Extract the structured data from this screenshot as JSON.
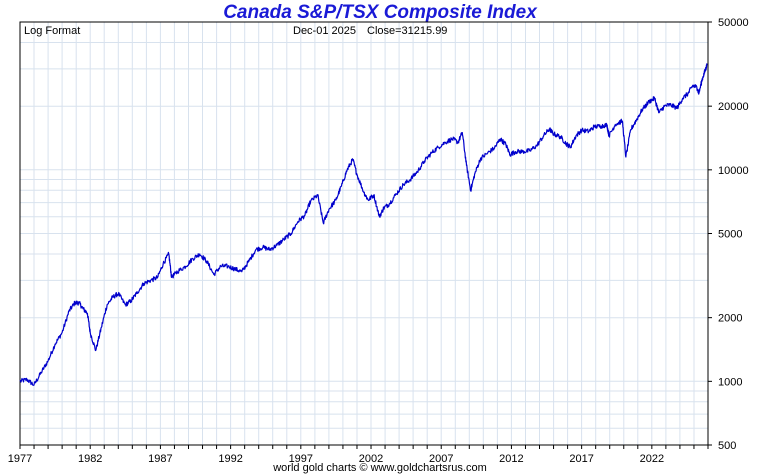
{
  "chart_data": {
    "type": "line",
    "title": "Canada S&P/TSX Composite Index",
    "scale_label": "Log Format",
    "last_date": "Dec-01  2025",
    "last_close_label": "Close=31215.99",
    "y_scale": "log",
    "ylim": [
      500,
      50000
    ],
    "xlim": [
      1977,
      2026
    ],
    "y_ticks": [
      500,
      1000,
      2000,
      5000,
      10000,
      20000,
      50000
    ],
    "x_ticks": [
      1977,
      1982,
      1987,
      1992,
      1997,
      2002,
      2007,
      2012,
      2017,
      2022
    ],
    "grid": true,
    "line_color": "#0000cc",
    "series": [
      {
        "name": "S&P/TSX Composite",
        "points": [
          [
            1977.0,
            1000
          ],
          [
            1977.5,
            1020
          ],
          [
            1978.0,
            960
          ],
          [
            1978.5,
            1100
          ],
          [
            1979.0,
            1250
          ],
          [
            1979.5,
            1500
          ],
          [
            1980.0,
            1700
          ],
          [
            1980.5,
            2150
          ],
          [
            1980.9,
            2350
          ],
          [
            1981.2,
            2350
          ],
          [
            1981.5,
            2200
          ],
          [
            1981.8,
            2100
          ],
          [
            1982.0,
            1700
          ],
          [
            1982.4,
            1400
          ],
          [
            1982.8,
            1800
          ],
          [
            1983.2,
            2300
          ],
          [
            1983.6,
            2500
          ],
          [
            1984.0,
            2600
          ],
          [
            1984.5,
            2300
          ],
          [
            1984.9,
            2400
          ],
          [
            1985.3,
            2600
          ],
          [
            1985.8,
            2900
          ],
          [
            1986.3,
            3000
          ],
          [
            1986.8,
            3100
          ],
          [
            1987.2,
            3600
          ],
          [
            1987.6,
            4000
          ],
          [
            1987.8,
            3100
          ],
          [
            1988.2,
            3300
          ],
          [
            1988.8,
            3500
          ],
          [
            1989.3,
            3800
          ],
          [
            1989.8,
            4000
          ],
          [
            1990.3,
            3700
          ],
          [
            1990.8,
            3200
          ],
          [
            1991.3,
            3500
          ],
          [
            1991.8,
            3500
          ],
          [
            1992.3,
            3400
          ],
          [
            1992.8,
            3300
          ],
          [
            1993.3,
            3700
          ],
          [
            1993.8,
            4200
          ],
          [
            1994.3,
            4300
          ],
          [
            1994.8,
            4200
          ],
          [
            1995.3,
            4400
          ],
          [
            1995.8,
            4700
          ],
          [
            1996.3,
            5000
          ],
          [
            1996.8,
            5700
          ],
          [
            1997.3,
            6100
          ],
          [
            1997.7,
            7100
          ],
          [
            1998.2,
            7600
          ],
          [
            1998.6,
            5600
          ],
          [
            1999.0,
            6500
          ],
          [
            1999.5,
            7200
          ],
          [
            1999.9,
            8400
          ],
          [
            2000.3,
            10000
          ],
          [
            2000.7,
            11200
          ],
          [
            2001.0,
            9500
          ],
          [
            2001.5,
            7800
          ],
          [
            2001.8,
            7200
          ],
          [
            2002.2,
            7600
          ],
          [
            2002.6,
            6000
          ],
          [
            2002.9,
            6600
          ],
          [
            2003.3,
            6900
          ],
          [
            2003.8,
            7700
          ],
          [
            2004.3,
            8500
          ],
          [
            2004.8,
            9000
          ],
          [
            2005.3,
            9800
          ],
          [
            2005.8,
            11000
          ],
          [
            2006.3,
            12000
          ],
          [
            2006.8,
            12800
          ],
          [
            2007.3,
            13500
          ],
          [
            2007.8,
            14000
          ],
          [
            2008.2,
            13500
          ],
          [
            2008.5,
            15000
          ],
          [
            2008.8,
            10500
          ],
          [
            2009.1,
            8000
          ],
          [
            2009.4,
            9600
          ],
          [
            2009.8,
            11300
          ],
          [
            2010.3,
            12000
          ],
          [
            2010.8,
            12700
          ],
          [
            2011.2,
            14000
          ],
          [
            2011.6,
            13200
          ],
          [
            2011.9,
            11800
          ],
          [
            2012.3,
            12200
          ],
          [
            2012.8,
            12200
          ],
          [
            2013.3,
            12300
          ],
          [
            2013.8,
            13000
          ],
          [
            2014.3,
            14500
          ],
          [
            2014.7,
            15600
          ],
          [
            2015.0,
            14800
          ],
          [
            2015.5,
            14300
          ],
          [
            2015.9,
            13300
          ],
          [
            2016.2,
            12800
          ],
          [
            2016.6,
            14500
          ],
          [
            2017.0,
            15400
          ],
          [
            2017.5,
            15200
          ],
          [
            2017.9,
            16000
          ],
          [
            2018.4,
            16100
          ],
          [
            2018.8,
            16300
          ],
          [
            2018.95,
            14500
          ],
          [
            2019.4,
            16400
          ],
          [
            2019.9,
            17000
          ],
          [
            2020.15,
            11500
          ],
          [
            2020.5,
            15500
          ],
          [
            2020.9,
            17200
          ],
          [
            2021.3,
            19200
          ],
          [
            2021.8,
            21000
          ],
          [
            2022.2,
            21800
          ],
          [
            2022.5,
            18600
          ],
          [
            2022.9,
            20000
          ],
          [
            2023.3,
            20300
          ],
          [
            2023.8,
            19600
          ],
          [
            2024.2,
            21800
          ],
          [
            2024.6,
            23000
          ],
          [
            2024.9,
            25000
          ],
          [
            2025.2,
            24600
          ],
          [
            2025.35,
            23000
          ],
          [
            2025.6,
            27000
          ],
          [
            2025.8,
            29500
          ],
          [
            2025.92,
            31216
          ]
        ]
      }
    ]
  },
  "footer": "world gold charts © www.goldchartsrus.com"
}
